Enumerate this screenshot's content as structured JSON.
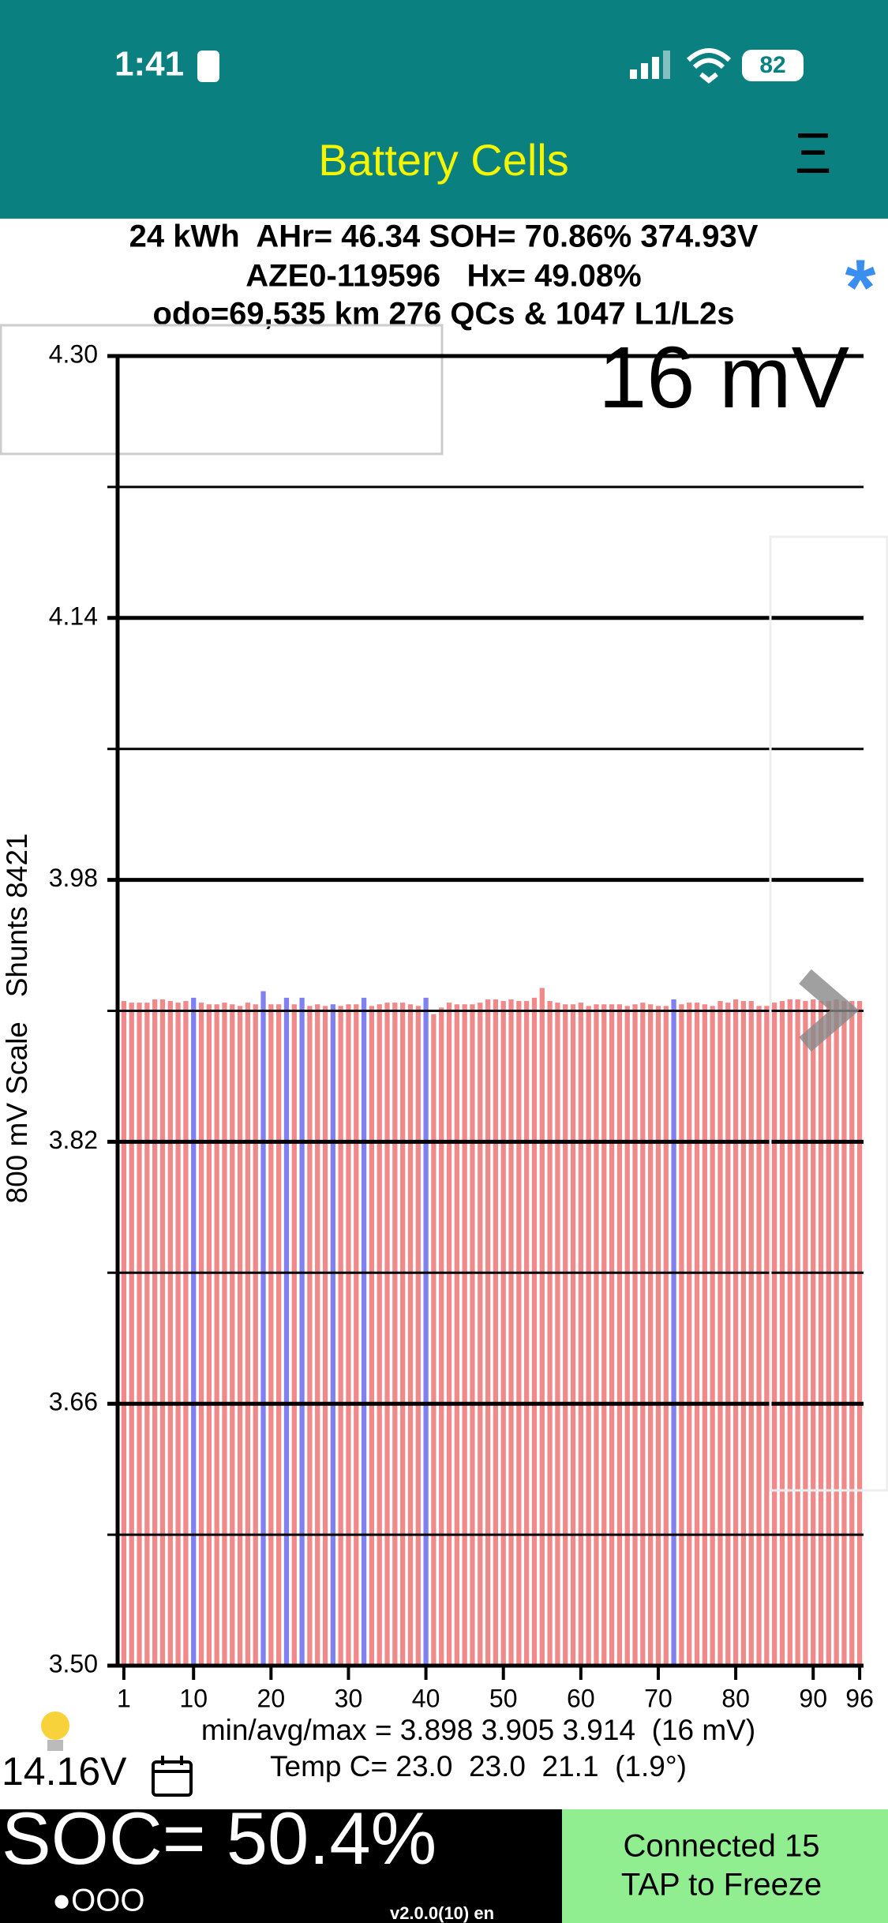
{
  "status_bar": {
    "time": "1:41",
    "battery": "82"
  },
  "app_bar": {
    "title": "Battery Cells",
    "menu": "Ξ"
  },
  "summary": {
    "lines": [
      "24 kWh  AHr= 46.34 SOH= 70.86% 374.93V",
      "AZE0-119596   Hx= 49.08%",
      "odo=69,535 km 276 QCs & 1047 L1/L2s"
    ],
    "marker": "*"
  },
  "chart_data": {
    "type": "bar",
    "annotation": "16 mV",
    "ylabel": "800 mV Scale   Shunts 8421",
    "x": [
      1,
      2,
      3,
      4,
      5,
      6,
      7,
      8,
      9,
      10,
      11,
      12,
      13,
      14,
      15,
      16,
      17,
      18,
      19,
      20,
      21,
      22,
      23,
      24,
      25,
      26,
      27,
      28,
      29,
      30,
      31,
      32,
      33,
      34,
      35,
      36,
      37,
      38,
      39,
      40,
      41,
      42,
      43,
      44,
      45,
      46,
      47,
      48,
      49,
      50,
      51,
      52,
      53,
      54,
      55,
      56,
      57,
      58,
      59,
      60,
      61,
      62,
      63,
      64,
      65,
      66,
      67,
      68,
      69,
      70,
      71,
      72,
      73,
      74,
      75,
      76,
      77,
      78,
      79,
      80,
      81,
      82,
      83,
      84,
      85,
      86,
      87,
      88,
      89,
      90,
      91,
      92,
      93,
      94,
      95,
      96
    ],
    "values": [
      3.906,
      3.905,
      3.905,
      3.905,
      3.907,
      3.907,
      3.906,
      3.905,
      3.906,
      3.908,
      3.905,
      3.904,
      3.904,
      3.905,
      3.904,
      3.903,
      3.905,
      3.904,
      3.912,
      3.904,
      3.904,
      3.908,
      3.904,
      3.908,
      3.903,
      3.904,
      3.903,
      3.904,
      3.903,
      3.904,
      3.904,
      3.908,
      3.903,
      3.904,
      3.905,
      3.905,
      3.905,
      3.904,
      3.903,
      3.908,
      3.898,
      3.902,
      3.905,
      3.904,
      3.904,
      3.904,
      3.905,
      3.907,
      3.907,
      3.906,
      3.907,
      3.906,
      3.906,
      3.908,
      3.914,
      3.906,
      3.905,
      3.904,
      3.904,
      3.905,
      3.903,
      3.904,
      3.904,
      3.904,
      3.904,
      3.903,
      3.904,
      3.905,
      3.904,
      3.903,
      3.903,
      3.907,
      3.904,
      3.905,
      3.905,
      3.904,
      3.903,
      3.906,
      3.905,
      3.907,
      3.906,
      3.906,
      3.903,
      3.903,
      3.905,
      3.906,
      3.907,
      3.907,
      3.906,
      3.907,
      3.906,
      3.906,
      3.907,
      3.906,
      3.906,
      3.906
    ],
    "color": "#f08a8a",
    "highlight_color": "#8080f0",
    "highlighted": [
      9,
      18,
      21,
      23,
      27,
      31,
      39,
      71
    ],
    "xlim": [
      0.5,
      96.5
    ],
    "xticks": [
      1,
      10,
      20,
      30,
      40,
      50,
      60,
      70,
      80,
      90,
      96
    ],
    "ylim": [
      3.5,
      4.3
    ],
    "yticks": [
      {
        "value": 3.5,
        "label": "3.50"
      },
      3.66,
      3.82,
      3.98,
      4.14,
      {
        "value": 4.3,
        "label": "4.30"
      }
    ],
    "minor_yticks": [
      3.58,
      3.74,
      3.9,
      4.06,
      4.22
    ],
    "grid": true
  },
  "stats": {
    "minmax": "min/avg/max = 3.898 3.905 3.914  (16 mV)",
    "temp": "Temp C= 23.0  23.0  21.1  (1.9°)",
    "voltage": "14.16V"
  },
  "footer": {
    "soc": "SOC= 50.4%",
    "dots": "●OOO",
    "version": "v2.0.0(10) en",
    "status": [
      "Connected 15",
      "TAP to Freeze"
    ]
  }
}
